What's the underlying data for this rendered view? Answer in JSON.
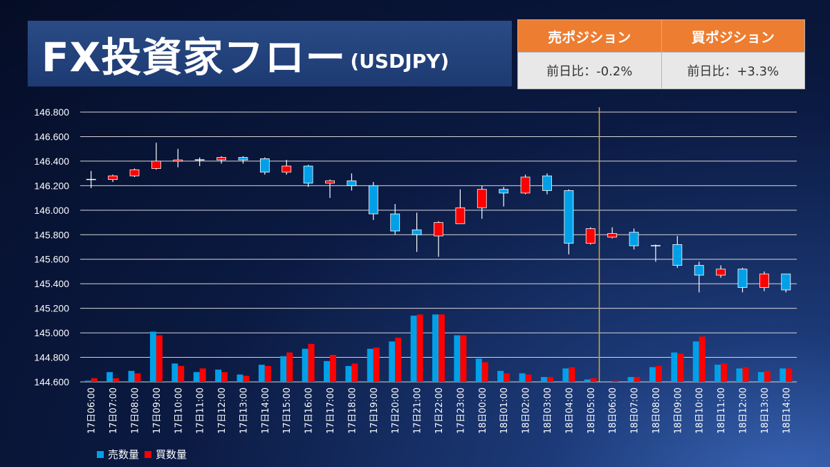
{
  "title": {
    "main": "FX投資家フロー",
    "sub": "(USDJPY)"
  },
  "positions": {
    "sell": {
      "label": "売ポジション",
      "change": "前日比：-0.2%"
    },
    "buy": {
      "label": "買ポジション",
      "change": "前日比：+3.3%"
    }
  },
  "colors": {
    "sell": "#00a0e9",
    "buy": "#ff0000",
    "divider": "#e0a820",
    "doji": "#ffffff"
  },
  "chart_data": {
    "type": "candlestick",
    "ylim": [
      144.6,
      146.8
    ],
    "yticks": [
      "146.800",
      "146.600",
      "146.400",
      "146.200",
      "146.000",
      "145.800",
      "145.600",
      "145.400",
      "145.200",
      "145.000",
      "144.800",
      "144.600"
    ],
    "grid": true,
    "categories": [
      "17日06:00",
      "17日07:00",
      "17日08:00",
      "17日09:00",
      "17日10:00",
      "17日11:00",
      "17日12:00",
      "17日13:00",
      "17日14:00",
      "17日15:00",
      "17日16:00",
      "17日17:00",
      "17日18:00",
      "17日19:00",
      "17日20:00",
      "17日21:00",
      "17日22:00",
      "17日23:00",
      "18日00:00",
      "18日01:00",
      "18日02:00",
      "18日03:00",
      "18日04:00",
      "18日05:00",
      "18日06:00",
      "18日07:00",
      "18日08:00",
      "18日09:00",
      "18日10:00",
      "18日11:00",
      "18日12:00",
      "18日13:00",
      "18日14:00"
    ],
    "candles": [
      {
        "o": 146.25,
        "h": 146.32,
        "l": 146.18,
        "c": 146.25
      },
      {
        "o": 146.25,
        "h": 146.29,
        "l": 146.23,
        "c": 146.28
      },
      {
        "o": 146.28,
        "h": 146.34,
        "l": 146.27,
        "c": 146.33
      },
      {
        "o": 146.34,
        "h": 146.55,
        "l": 146.33,
        "c": 146.4
      },
      {
        "o": 146.4,
        "h": 146.5,
        "l": 146.35,
        "c": 146.41
      },
      {
        "o": 146.41,
        "h": 146.43,
        "l": 146.36,
        "c": 146.41
      },
      {
        "o": 146.41,
        "h": 146.44,
        "l": 146.38,
        "c": 146.43
      },
      {
        "o": 146.43,
        "h": 146.44,
        "l": 146.38,
        "c": 146.41
      },
      {
        "o": 146.42,
        "h": 146.43,
        "l": 146.29,
        "c": 146.31
      },
      {
        "o": 146.31,
        "h": 146.41,
        "l": 146.29,
        "c": 146.36
      },
      {
        "o": 146.36,
        "h": 146.37,
        "l": 146.19,
        "c": 146.22
      },
      {
        "o": 146.22,
        "h": 146.25,
        "l": 146.1,
        "c": 146.24
      },
      {
        "o": 146.24,
        "h": 146.3,
        "l": 146.16,
        "c": 146.2
      },
      {
        "o": 146.2,
        "h": 146.23,
        "l": 145.92,
        "c": 145.97
      },
      {
        "o": 145.97,
        "h": 146.05,
        "l": 145.8,
        "c": 145.83
      },
      {
        "o": 145.84,
        "h": 145.98,
        "l": 145.66,
        "c": 145.8
      },
      {
        "o": 145.79,
        "h": 145.91,
        "l": 145.62,
        "c": 145.9
      },
      {
        "o": 145.89,
        "h": 146.17,
        "l": 145.89,
        "c": 146.02
      },
      {
        "o": 146.02,
        "h": 146.2,
        "l": 145.93,
        "c": 146.17
      },
      {
        "o": 146.17,
        "h": 146.19,
        "l": 146.03,
        "c": 146.14
      },
      {
        "o": 146.14,
        "h": 146.29,
        "l": 146.13,
        "c": 146.27
      },
      {
        "o": 146.28,
        "h": 146.3,
        "l": 146.13,
        "c": 146.16
      },
      {
        "o": 146.16,
        "h": 146.17,
        "l": 145.64,
        "c": 145.73
      },
      {
        "o": 145.73,
        "h": 145.86,
        "l": 145.72,
        "c": 145.85
      },
      {
        "o": 145.78,
        "h": 145.86,
        "l": 145.77,
        "c": 145.81
      },
      {
        "o": 145.82,
        "h": 145.85,
        "l": 145.68,
        "c": 145.71
      },
      {
        "o": 145.71,
        "h": 145.72,
        "l": 145.58,
        "c": 145.71
      },
      {
        "o": 145.72,
        "h": 145.79,
        "l": 145.53,
        "c": 145.55
      },
      {
        "o": 145.55,
        "h": 145.58,
        "l": 145.33,
        "c": 145.47
      },
      {
        "o": 145.47,
        "h": 145.55,
        "l": 145.45,
        "c": 145.52
      },
      {
        "o": 145.52,
        "h": 145.53,
        "l": 145.33,
        "c": 145.37
      },
      {
        "o": 145.37,
        "h": 145.5,
        "l": 145.34,
        "c": 145.48
      },
      {
        "o": 145.48,
        "h": 145.48,
        "l": 145.33,
        "c": 145.35
      }
    ],
    "series": [
      {
        "name": "売数量",
        "values": [
          144.61,
          144.68,
          144.69,
          145.01,
          144.75,
          144.68,
          144.7,
          144.66,
          144.74,
          144.81,
          144.87,
          144.77,
          144.73,
          144.87,
          144.93,
          145.14,
          145.15,
          144.98,
          144.79,
          144.69,
          144.67,
          144.64,
          144.71,
          144.62,
          144.6,
          144.64,
          144.72,
          144.84,
          144.93,
          144.74,
          144.71,
          144.68,
          144.71
        ]
      },
      {
        "name": "買数量",
        "values": [
          144.63,
          144.63,
          144.67,
          144.98,
          144.73,
          144.71,
          144.68,
          144.65,
          144.73,
          144.84,
          144.91,
          144.82,
          144.75,
          144.88,
          144.96,
          145.15,
          145.15,
          144.98,
          144.76,
          144.67,
          144.66,
          144.64,
          144.72,
          144.63,
          144.61,
          144.64,
          144.73,
          144.83,
          144.97,
          144.75,
          144.72,
          144.69,
          144.71
        ]
      }
    ],
    "divider_after_index": 23,
    "legend": [
      "売数量",
      "買数量"
    ],
    "legend_position": "bottom-left"
  }
}
